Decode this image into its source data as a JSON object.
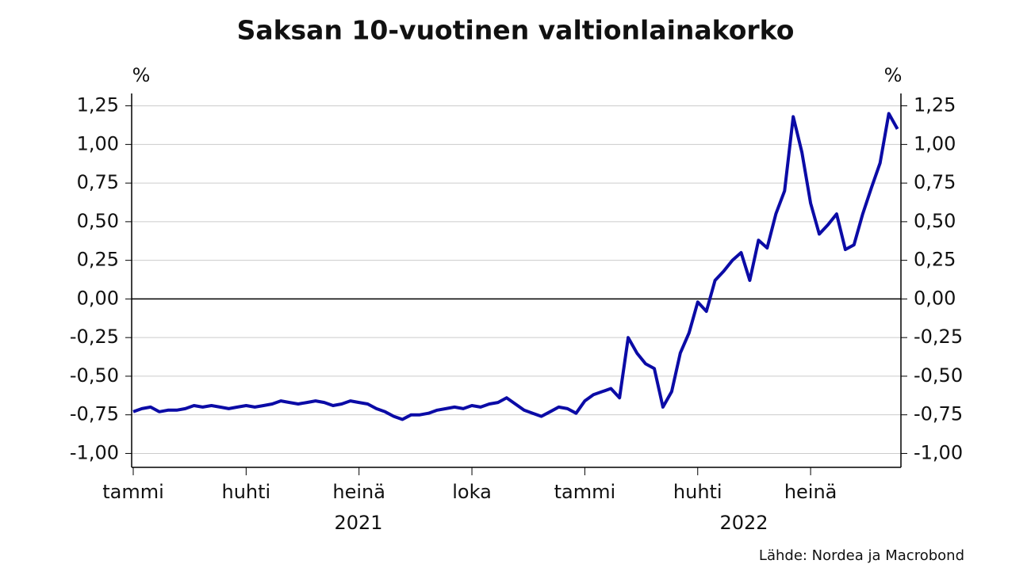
{
  "chart_data": {
    "type": "line",
    "title": "Saksan 10-vuotinen valtionlainakorko",
    "y_unit": "%",
    "y2_unit": "%",
    "source": "Lähde: Nordea ja Macrobond",
    "year_labels": [
      "2021",
      "2022"
    ],
    "categories": [
      "tammi",
      null,
      null,
      null,
      null,
      null,
      null,
      null,
      null,
      null,
      null,
      null,
      null,
      "huhti",
      null,
      null,
      null,
      null,
      null,
      null,
      null,
      null,
      null,
      null,
      null,
      null,
      "heinä",
      null,
      null,
      null,
      null,
      null,
      null,
      null,
      null,
      null,
      null,
      null,
      null,
      "loka",
      null,
      null,
      null,
      null,
      null,
      null,
      null,
      null,
      null,
      null,
      null,
      null,
      "tammi",
      null,
      null,
      null,
      null,
      null,
      null,
      null,
      null,
      null,
      null,
      null,
      null,
      "huhti",
      null,
      null,
      null,
      null,
      null,
      null,
      null,
      null,
      null,
      null,
      null,
      null,
      "heinä",
      null,
      null,
      null,
      null,
      null,
      null,
      null,
      null,
      null,
      null
    ],
    "series": [
      {
        "color": "#0b0ba6",
        "values": [
          -0.73,
          -0.71,
          -0.7,
          -0.73,
          -0.72,
          -0.72,
          -0.71,
          -0.69,
          -0.7,
          -0.69,
          -0.7,
          -0.71,
          -0.7,
          -0.69,
          -0.7,
          -0.69,
          -0.68,
          -0.66,
          -0.67,
          -0.68,
          -0.67,
          -0.66,
          -0.67,
          -0.69,
          -0.68,
          -0.66,
          -0.67,
          -0.68,
          -0.71,
          -0.73,
          -0.76,
          -0.78,
          -0.75,
          -0.75,
          -0.74,
          -0.72,
          -0.71,
          -0.7,
          -0.71,
          -0.69,
          -0.7,
          -0.68,
          -0.67,
          -0.64,
          -0.68,
          -0.72,
          -0.74,
          -0.76,
          -0.73,
          -0.7,
          -0.71,
          -0.74,
          -0.66,
          -0.62,
          -0.6,
          -0.58,
          -0.64,
          -0.25,
          -0.35,
          -0.42,
          -0.45,
          -0.7,
          -0.6,
          -0.35,
          -0.22,
          -0.02,
          -0.08,
          0.12,
          0.18,
          0.25,
          0.3,
          0.12,
          0.38,
          0.33,
          0.55,
          0.7,
          1.18,
          0.95,
          0.62,
          0.42,
          0.48,
          0.55,
          0.32,
          0.35,
          0.55,
          0.72,
          0.88,
          1.2,
          1.1
        ]
      }
    ],
    "ylim": [
      -1.09,
      1.33
    ],
    "yticks": [
      {
        "value": -1.0,
        "label": "-1,00"
      },
      {
        "value": -0.75,
        "label": "-0,75"
      },
      {
        "value": -0.5,
        "label": "-0,50"
      },
      {
        "value": -0.25,
        "label": "-0,25"
      },
      {
        "value": 0,
        "label": "0,00"
      },
      {
        "value": 0.25,
        "label": "0,25"
      },
      {
        "value": 0.5,
        "label": "0,50"
      },
      {
        "value": 0.75,
        "label": "0,75"
      },
      {
        "value": 1.0,
        "label": "1,00"
      },
      {
        "value": 1.25,
        "label": "1,25"
      }
    ],
    "grid": true
  }
}
